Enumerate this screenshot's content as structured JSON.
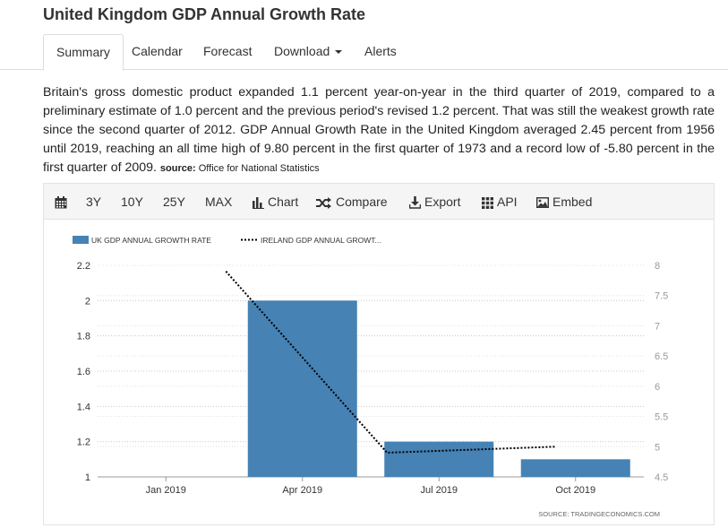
{
  "header": {
    "title": "United Kingdom GDP Annual Growth Rate"
  },
  "tabs": [
    {
      "label": "Summary",
      "active": true
    },
    {
      "label": "Calendar"
    },
    {
      "label": "Forecast"
    },
    {
      "label": "Download"
    },
    {
      "label": "Alerts"
    }
  ],
  "description": {
    "text": "Britain's gross domestic product expanded 1.1 percent year-on-year in the third quarter of 2019, compared to a preliminary estimate of 1.0 percent and the previous period's revised 1.2 percent. That was still the weakest growth rate since the second quarter of 2012. GDP Annual Growth Rate in the United Kingdom averaged 2.45 percent from 1956 until 2019, reaching an all time high of 9.80 percent in the first quarter of 1973 and a record low of -5.80 percent in the first quarter of 2009.",
    "source_label": "source:",
    "source_name": "Office for National Statistics"
  },
  "toolbar": {
    "calendar_icon": "calendar-icon",
    "range_3y": "3Y",
    "range_10y": "10Y",
    "range_25y": "25Y",
    "range_max": "MAX",
    "chart": "Chart",
    "compare": "Compare",
    "export": "Export",
    "api": "API",
    "embed": "Embed"
  },
  "chart_source": "SOURCE: TRADINGECONOMICS.COM",
  "colors": {
    "bar": "#4682b4",
    "line": "#000000"
  },
  "chart_data": {
    "type": "bar",
    "categories": [
      "Jan 2019",
      "Apr 2019",
      "Jul 2019",
      "Oct 2019"
    ],
    "series": [
      {
        "name": "UK GDP ANNUAL GROWTH RATE",
        "type": "bar",
        "axis": "left",
        "values": [
          null,
          2.0,
          1.2,
          1.1
        ]
      },
      {
        "name": "IRELAND GDP ANNUAL GROWT...",
        "type": "line",
        "axis": "right",
        "style": "dotted",
        "values": [
          null,
          7.9,
          4.9,
          5.0
        ]
      }
    ],
    "ylim_left": [
      1,
      2.2
    ],
    "yticks_left": [
      1,
      1.2,
      1.4,
      1.6,
      1.8,
      2,
      2.2
    ],
    "ylim_right": [
      4.5,
      8
    ],
    "yticks_right": [
      4.5,
      5,
      5.5,
      6,
      6.5,
      7,
      7.5,
      8
    ],
    "grid": true,
    "legend": "top-left"
  }
}
